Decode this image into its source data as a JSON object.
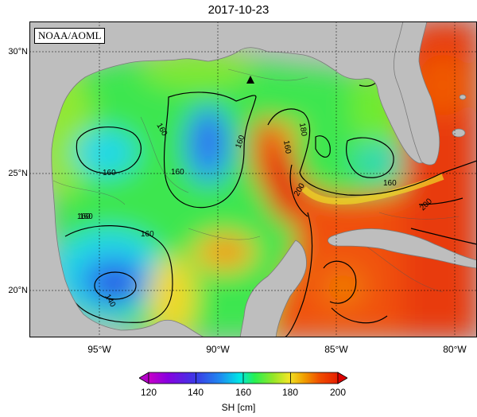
{
  "title": "2017-10-23",
  "source_label": "NOAA/AOML",
  "axes": {
    "lat_ticks": [
      {
        "value": 30,
        "label": "30°N"
      },
      {
        "value": 25,
        "label": "25°N"
      },
      {
        "value": 20,
        "label": "20°N"
      }
    ],
    "lon_ticks": [
      {
        "value": -95,
        "label": "95°W"
      },
      {
        "value": -90,
        "label": "90°W"
      },
      {
        "value": -85,
        "label": "85°W"
      },
      {
        "value": -80,
        "label": "80°W"
      }
    ]
  },
  "colorbar": {
    "label": "SH [cm]",
    "min": 120,
    "max": 200,
    "ticks": [
      {
        "value": 120,
        "label": "120"
      },
      {
        "value": 140,
        "label": "140"
      },
      {
        "value": 160,
        "label": "160"
      },
      {
        "value": 180,
        "label": "180"
      },
      {
        "value": 200,
        "label": "200"
      }
    ],
    "colors": [
      "#c800c8",
      "#8800e0",
      "#3a3ae6",
      "#1e8cf0",
      "#00e6e6",
      "#28f050",
      "#96e628",
      "#f0e628",
      "#f0a000",
      "#f05000",
      "#e61e00"
    ]
  },
  "contour_labels": [
    {
      "text": "160"
    },
    {
      "text": "160"
    },
    {
      "text": "160"
    },
    {
      "text": "160"
    },
    {
      "text": "160"
    },
    {
      "text": "160"
    },
    {
      "text": "160"
    },
    {
      "text": "140"
    },
    {
      "text": "180"
    },
    {
      "text": "160"
    },
    {
      "text": "160"
    },
    {
      "text": "200"
    },
    {
      "text": "200"
    }
  ],
  "marker": {
    "type": "triangle"
  },
  "colors": {
    "land": "#bebebe",
    "coast": "#7a7a7a"
  }
}
